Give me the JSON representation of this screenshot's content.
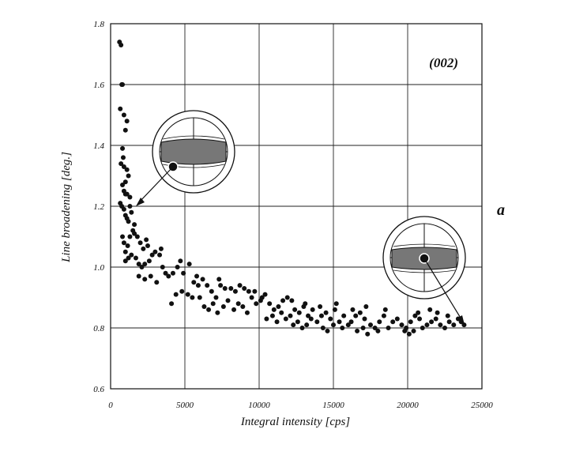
{
  "chart_data": {
    "type": "scatter",
    "title": "",
    "xlabel": "Integral intensity [cps]",
    "ylabel": "Line broadening [deg.]",
    "xlim": [
      0,
      25000
    ],
    "ylim": [
      0.6,
      1.8
    ],
    "xticks": [
      "0",
      "5000",
      "10000",
      "15000",
      "20000",
      "25000"
    ],
    "yticks": [
      "0.6",
      "0.8",
      "1.0",
      "1.2",
      "1.4",
      "1.6",
      "1.8"
    ],
    "grid": true,
    "annotation": "(002)",
    "panel_label": "a",
    "series": [
      {
        "values": [
          [
            600,
            1.74
          ],
          [
            700,
            1.73
          ],
          [
            750,
            1.6
          ],
          [
            800,
            1.6
          ],
          [
            650,
            1.52
          ],
          [
            900,
            1.5
          ],
          [
            1000,
            1.45
          ],
          [
            1100,
            1.48
          ],
          [
            800,
            1.39
          ],
          [
            700,
            1.34
          ],
          [
            900,
            1.33
          ],
          [
            1100,
            1.32
          ],
          [
            1200,
            1.3
          ],
          [
            800,
            1.27
          ],
          [
            900,
            1.25
          ],
          [
            1000,
            1.24
          ],
          [
            1100,
            1.24
          ],
          [
            1300,
            1.23
          ],
          [
            650,
            1.21
          ],
          [
            750,
            1.2
          ],
          [
            900,
            1.19
          ],
          [
            1000,
            1.17
          ],
          [
            1100,
            1.16
          ],
          [
            1200,
            1.15
          ],
          [
            1400,
            1.18
          ],
          [
            1500,
            1.12
          ],
          [
            800,
            1.1
          ],
          [
            900,
            1.08
          ],
          [
            1000,
            1.05
          ],
          [
            1150,
            1.07
          ],
          [
            1300,
            1.1
          ],
          [
            1600,
            1.11
          ],
          [
            1800,
            1.1
          ],
          [
            2000,
            1.08
          ],
          [
            2200,
            1.06
          ],
          [
            2500,
            1.07
          ],
          [
            1000,
            1.02
          ],
          [
            1200,
            1.03
          ],
          [
            1400,
            1.04
          ],
          [
            1700,
            1.03
          ],
          [
            1900,
            1.01
          ],
          [
            2100,
            1.0
          ],
          [
            2300,
            1.01
          ],
          [
            2600,
            1.02
          ],
          [
            2800,
            1.04
          ],
          [
            3000,
            1.05
          ],
          [
            3300,
            1.04
          ],
          [
            3500,
            1.0
          ],
          [
            3700,
            0.98
          ],
          [
            1900,
            0.97
          ],
          [
            2300,
            0.96
          ],
          [
            2700,
            0.97
          ],
          [
            3100,
            0.95
          ],
          [
            3900,
            0.97
          ],
          [
            4200,
            0.98
          ],
          [
            4500,
            1.0
          ],
          [
            4900,
            0.98
          ],
          [
            5300,
            1.01
          ],
          [
            5600,
            0.95
          ],
          [
            5900,
            0.94
          ],
          [
            4100,
            0.88
          ],
          [
            4400,
            0.91
          ],
          [
            4800,
            0.92
          ],
          [
            5200,
            0.91
          ],
          [
            5500,
            0.9
          ],
          [
            6000,
            0.9
          ],
          [
            6200,
            0.96
          ],
          [
            6500,
            0.94
          ],
          [
            6800,
            0.92
          ],
          [
            7100,
            0.9
          ],
          [
            7400,
            0.94
          ],
          [
            7700,
            0.93
          ],
          [
            6300,
            0.87
          ],
          [
            6600,
            0.86
          ],
          [
            6900,
            0.88
          ],
          [
            7200,
            0.85
          ],
          [
            7600,
            0.87
          ],
          [
            7900,
            0.89
          ],
          [
            8100,
            0.93
          ],
          [
            8400,
            0.92
          ],
          [
            8700,
            0.94
          ],
          [
            9000,
            0.93
          ],
          [
            9300,
            0.92
          ],
          [
            9500,
            0.9
          ],
          [
            8300,
            0.86
          ],
          [
            8600,
            0.88
          ],
          [
            8900,
            0.87
          ],
          [
            9200,
            0.85
          ],
          [
            9800,
            0.88
          ],
          [
            10100,
            0.89
          ],
          [
            10400,
            0.91
          ],
          [
            10700,
            0.88
          ],
          [
            11000,
            0.86
          ],
          [
            11300,
            0.87
          ],
          [
            11600,
            0.89
          ],
          [
            11900,
            0.9
          ],
          [
            10500,
            0.83
          ],
          [
            10900,
            0.84
          ],
          [
            11200,
            0.82
          ],
          [
            11500,
            0.85
          ],
          [
            11800,
            0.83
          ],
          [
            12100,
            0.84
          ],
          [
            12400,
            0.86
          ],
          [
            12700,
            0.85
          ],
          [
            13000,
            0.87
          ],
          [
            13300,
            0.84
          ],
          [
            13600,
            0.86
          ],
          [
            13900,
            0.82
          ],
          [
            12300,
            0.81
          ],
          [
            12600,
            0.82
          ],
          [
            12900,
            0.8
          ],
          [
            13200,
            0.81
          ],
          [
            13500,
            0.83
          ],
          [
            14200,
            0.84
          ],
          [
            14500,
            0.85
          ],
          [
            14800,
            0.83
          ],
          [
            15100,
            0.86
          ],
          [
            15400,
            0.82
          ],
          [
            15700,
            0.84
          ],
          [
            16000,
            0.81
          ],
          [
            14300,
            0.8
          ],
          [
            14600,
            0.79
          ],
          [
            15000,
            0.81
          ],
          [
            15600,
            0.8
          ],
          [
            16200,
            0.82
          ],
          [
            16500,
            0.84
          ],
          [
            16800,
            0.85
          ],
          [
            17100,
            0.83
          ],
          [
            17500,
            0.81
          ],
          [
            17800,
            0.8
          ],
          [
            18100,
            0.82
          ],
          [
            18400,
            0.84
          ],
          [
            16600,
            0.79
          ],
          [
            17000,
            0.8
          ],
          [
            17300,
            0.78
          ],
          [
            18000,
            0.79
          ],
          [
            18700,
            0.8
          ],
          [
            19000,
            0.82
          ],
          [
            19300,
            0.83
          ],
          [
            19600,
            0.81
          ],
          [
            19900,
            0.8
          ],
          [
            20200,
            0.82
          ],
          [
            20500,
            0.84
          ],
          [
            20800,
            0.83
          ],
          [
            19800,
            0.79
          ],
          [
            20100,
            0.78
          ],
          [
            20400,
            0.79
          ],
          [
            21000,
            0.8
          ],
          [
            21300,
            0.81
          ],
          [
            21600,
            0.82
          ],
          [
            21900,
            0.83
          ],
          [
            22200,
            0.81
          ],
          [
            22500,
            0.8
          ],
          [
            22800,
            0.82
          ],
          [
            23100,
            0.81
          ],
          [
            23400,
            0.83
          ],
          [
            23600,
            0.82
          ],
          [
            23800,
            0.81
          ],
          [
            22000,
            0.85
          ],
          [
            22700,
            0.84
          ],
          [
            21500,
            0.86
          ],
          [
            20700,
            0.85
          ],
          [
            18500,
            0.86
          ],
          [
            17200,
            0.87
          ],
          [
            16300,
            0.86
          ],
          [
            15200,
            0.88
          ],
          [
            14100,
            0.87
          ],
          [
            13100,
            0.88
          ],
          [
            12200,
            0.89
          ],
          [
            10200,
            0.9
          ],
          [
            9700,
            0.92
          ],
          [
            7300,
            0.96
          ],
          [
            5800,
            0.97
          ],
          [
            4700,
            1.02
          ],
          [
            3400,
            1.06
          ],
          [
            2400,
            1.09
          ],
          [
            1600,
            1.14
          ],
          [
            1300,
            1.2
          ],
          [
            1000,
            1.28
          ],
          [
            850,
            1.36
          ]
        ]
      }
    ]
  }
}
